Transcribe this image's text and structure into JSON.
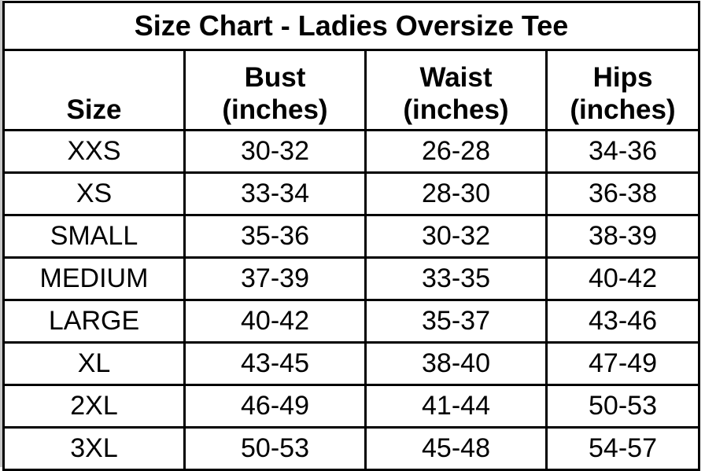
{
  "title": "Size Chart - Ladies Oversize Tee",
  "headers": [
    {
      "line1": "",
      "line2": "Size"
    },
    {
      "line1": "Bust",
      "line2": "(inches)"
    },
    {
      "line1": "Waist",
      "line2": "(inches)"
    },
    {
      "line1": "Hips",
      "line2": "(inches)"
    }
  ],
  "rows": [
    [
      "XXS",
      "30-32",
      "26-28",
      "34-36"
    ],
    [
      "XS",
      "33-34",
      "28-30",
      "36-38"
    ],
    [
      "SMALL",
      "35-36",
      "30-32",
      "38-39"
    ],
    [
      "MEDIUM",
      "37-39",
      "33-35",
      "40-42"
    ],
    [
      "LARGE",
      "40-42",
      "35-37",
      "43-46"
    ],
    [
      "XL",
      "43-45",
      "38-40",
      "47-49"
    ],
    [
      "2XL",
      "46-49",
      "41-44",
      "50-53"
    ],
    [
      "3XL",
      "50-53",
      "45-48",
      "54-57"
    ]
  ]
}
